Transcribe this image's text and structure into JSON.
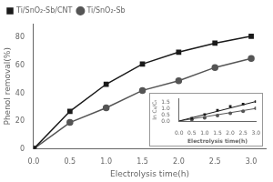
{
  "chart_data": [
    {
      "type": "line",
      "x": [
        0.0,
        0.5,
        1.0,
        1.5,
        2.0,
        2.5,
        3.0
      ],
      "series": [
        {
          "name": "Ti/SnO₂-Sb/CNT",
          "color": "#1a1a1a",
          "marker": "square",
          "values": [
            0.0,
            27.0,
            46.5,
            61.0,
            69.5,
            76.0,
            81.0
          ]
        },
        {
          "name": "Ti/SnO₂-Sb",
          "color": "#555555",
          "marker": "circle",
          "values": [
            0.0,
            19.0,
            29.5,
            42.0,
            49.0,
            58.5,
            65.0
          ]
        }
      ],
      "xlabel": "Electrolysis time(h)",
      "ylabel": "Phenol removal(%)",
      "xlim": [
        0.0,
        3.2
      ],
      "xticks": [
        {
          "value": 0.0,
          "label": "0.0"
        },
        {
          "value": 0.5,
          "label": "0.5"
        },
        {
          "value": 1.0,
          "label": "1.0"
        },
        {
          "value": 1.5,
          "label": "1.5"
        },
        {
          "value": 2.0,
          "label": "2.0"
        },
        {
          "value": 2.5,
          "label": "2.5"
        },
        {
          "value": 3.0,
          "label": "3.0"
        }
      ],
      "ylim": [
        0,
        90
      ],
      "yticks": [
        0,
        20,
        40,
        60,
        80
      ],
      "legend": "upper left",
      "grid": false
    },
    {
      "type": "scatter",
      "series": [
        {
          "type": "scatter",
          "color": "#1a1a1a",
          "marker": "square",
          "x": [
            0.5,
            1.0,
            1.5,
            2.0,
            2.5,
            3.0
          ],
          "values": [
            0.22,
            0.52,
            0.88,
            1.18,
            1.38,
            1.58
          ]
        },
        {
          "type": "scatter",
          "color": "#555555",
          "marker": "circle",
          "x": [
            0.5,
            1.0,
            1.5,
            2.0,
            2.5,
            3.0
          ],
          "values": [
            0.12,
            0.26,
            0.44,
            0.62,
            0.8,
            1.03
          ]
        },
        {
          "type": "line",
          "color": "#1a1a1a",
          "x": [
            0.0,
            3.0
          ],
          "values": [
            0.0,
            1.584
          ]
        },
        {
          "type": "line",
          "color": "#555555",
          "x": [
            0.0,
            3.0
          ],
          "values": [
            0.0,
            1.02
          ]
        }
      ],
      "xlabel": "Electrolysis time(h)",
      "ylabel": "ln C₀/Cₜ",
      "xlim": [
        0.0,
        3.0
      ],
      "xticks": [
        {
          "value": 0.0,
          "label": "0.0"
        },
        {
          "value": 0.5,
          "label": "0.5"
        },
        {
          "value": 1.0,
          "label": "1.0"
        },
        {
          "value": 1.5,
          "label": "1.5"
        },
        {
          "value": 2.0,
          "label": "2.0"
        },
        {
          "value": 2.5,
          "label": "2.5"
        },
        {
          "value": 3.0,
          "label": "3.0"
        }
      ],
      "ylim": [
        0.0,
        1.8
      ],
      "yticks": [
        {
          "value": 0.0,
          "label": "0.0"
        },
        {
          "value": 0.5,
          "label": "0.5"
        },
        {
          "value": 1.0,
          "label": "1.0"
        },
        {
          "value": 1.5,
          "label": "1.5"
        }
      ],
      "grid": false
    }
  ]
}
